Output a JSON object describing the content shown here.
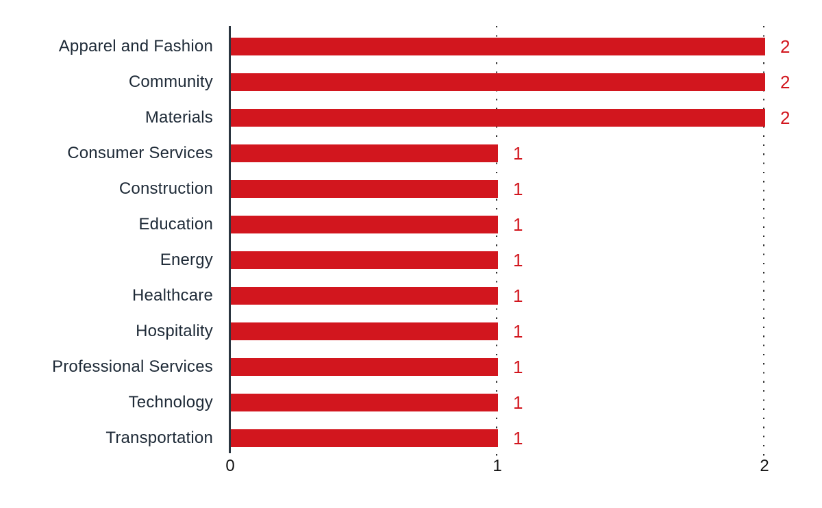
{
  "chart_data": {
    "type": "bar",
    "orientation": "horizontal",
    "title": "",
    "xlabel": "",
    "ylabel": "",
    "categories": [
      "Apparel and Fashion",
      "Community",
      "Materials",
      "Consumer Services",
      "Construction",
      "Education",
      "Energy",
      "Healthcare",
      "Hospitality",
      "Professional Services",
      "Technology",
      "Transportation"
    ],
    "values": [
      2,
      2,
      2,
      1,
      1,
      1,
      1,
      1,
      1,
      1,
      1,
      1
    ],
    "value_labels": [
      "2",
      "2",
      "2",
      "1",
      "1",
      "1",
      "1",
      "1",
      "1",
      "1",
      "1",
      "1"
    ],
    "x_ticks": [
      "0",
      "1",
      "2"
    ],
    "xlim": [
      0,
      2
    ],
    "grid": "vertical dotted gridlines at x=1 and x=2, drawn behind bars",
    "legend": "none",
    "colors": {
      "bar": "#d2161e",
      "value_label": "#d2161e",
      "category_label": "#1e2a37",
      "axis_line": "#2a3540",
      "tick_label": "#131313",
      "gridline_dots": "#2e2e2e",
      "background": "#ffffff"
    }
  }
}
